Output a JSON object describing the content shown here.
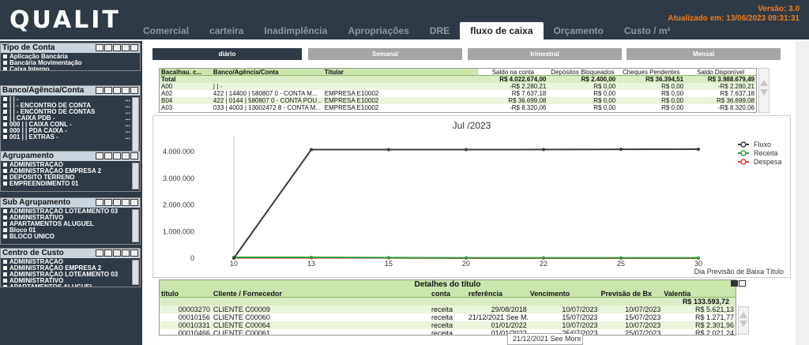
{
  "header": {
    "logo": "QUALIT",
    "version": "Versão: 3.0",
    "updated": "Atualizado em: 13/06/2023 09:31:31",
    "tabs": [
      "Comercial",
      "carteira",
      "Inadimplência",
      "Apropriações",
      "DRE",
      "fluxo de caixa",
      "Orçamento",
      "Custo / m²"
    ],
    "active_tab": "fluxo de caixa"
  },
  "sidebar": {
    "tipo_conta": {
      "title": "Tipo de Conta",
      "items": [
        "Aplicação Bancária",
        "Bancária Movimentação",
        "Caixa Interno"
      ]
    },
    "banco_conta": {
      "title": "Banco/Agência/Conta",
      "items": [
        [
          "| | -",
          "..."
        ],
        [
          "| | - ENCONTRO DE CONTA",
          "..."
        ],
        [
          "| | - ENCONTRO DE CONTAS",
          "..."
        ],
        [
          "| | CAIXA PDB -",
          "..."
        ],
        [
          "000 | | CAIXA CONL -",
          "..."
        ],
        [
          "000 | | PDA CAIXA -",
          "..."
        ],
        [
          "001 | | EXTRAS -",
          "..."
        ]
      ]
    },
    "agrupamento": {
      "title": "Agrupamento",
      "items": [
        "ADMINISTRAÇÃO",
        "ADMINISTRAÇÃO EMPRESA 2",
        "DEPÓSITO TERRENO",
        "EMPREENDIMENTO 01"
      ]
    },
    "sub_agrupamento": {
      "title": "Sub Agrupamento",
      "items": [
        "ADMINISTRAÇÃO LOTEAMENTO 03",
        "ADMINISTRATIVO",
        "APARTAMENTOS ALUGUEL",
        "Bloco 01",
        "BLOCO UNICO"
      ]
    },
    "centro_custo": {
      "title": "Centro de Custo",
      "items": [
        "ADMINISTRAÇÃO",
        "ADMINISTRAÇÃO EMPRESA 2",
        "ADMINISTRAÇÃO LOTEAMENTO 03",
        "ADMINISTRATIVO",
        "APARTAMENTOS ALUGUEL"
      ]
    },
    "icons": [
      "search-icon",
      "comment-icon",
      "print-icon",
      "export-icon",
      "clear-icon"
    ]
  },
  "period_buttons": [
    "diário",
    "Semanal",
    "trimestral",
    "Mensal"
  ],
  "active_period": "diário",
  "accounts_table": {
    "headers": [
      "Bacalhau. c...",
      "Banco/Agência/Conta",
      "Titular",
      "Saldo na conta",
      "Depósitos Bloqueados",
      "Cheques Pendentes",
      "Saldo Disponível"
    ],
    "total": [
      "Total",
      "",
      "",
      "R$ 4.022.674,00",
      "R$ 2.400,00",
      "R$ 36.394,51",
      "R$ 3.988.679,49"
    ],
    "rows": [
      [
        "A00",
        "| | -",
        "",
        "-R$ 2.280,21",
        "R$ 0,00",
        "R$ 0,00",
        "-R$ 2.280,21"
      ],
      [
        "A02",
        "422 | 14400 | 580807 0 - CONTA M...",
        "EMPRESA E10002",
        "R$ 7.637,18",
        "R$ 0,00",
        "R$ 0,00",
        "R$ 7.637,18"
      ],
      [
        "B04",
        "422 | 0144 | 580807 0 - CONTA POU...",
        "EMPRESA E10002",
        "R$ 36.699,08",
        "R$ 0,00",
        "R$ 0,00",
        "R$ 36.699,08"
      ],
      [
        "A03",
        "033 | 4003 | 13002472 8 - CONTA M...",
        "EMPRESA E10002",
        "-R$ 8.320,06",
        "R$ 0,00",
        "R$ 0,00",
        "-R$ 8.320,06"
      ]
    ]
  },
  "chart_data": {
    "type": "line",
    "title": "Jul /2023",
    "xlabel": "Dia Previsão de Baixa Título",
    "ylabel": "",
    "x": [
      10,
      13,
      15,
      20,
      22,
      25,
      30
    ],
    "yticks": [
      "0",
      "1.000.000",
      "2.000.000",
      "3.000.000",
      "4.000.000"
    ],
    "ylim": [
      0,
      4600000
    ],
    "series": [
      {
        "name": "Fluxo",
        "color": "#3b3b3b",
        "values": [
          0,
          4080000,
          4080000,
          4080000,
          4085000,
          4090000,
          4095000
        ]
      },
      {
        "name": "Receita",
        "color": "#2e9b3b",
        "values": [
          30000,
          30000,
          20000,
          10000,
          10000,
          10000,
          10000
        ]
      },
      {
        "name": "Despesa",
        "color": "#e53935",
        "values": [
          10000,
          10000,
          10000,
          0,
          0,
          0,
          0
        ]
      }
    ],
    "legend": "top-right"
  },
  "details_table": {
    "title": "Detalhes do título",
    "headers": [
      "título",
      "Cliente / Fornecedor",
      "conta",
      "referência",
      "Vencimento",
      "Previsão de Bx",
      "Valentia"
    ],
    "total": "R$ 133.593,72",
    "rows": [
      [
        "00003270",
        "CLIENTE C00009",
        "receita",
        "29/08/2018",
        "10/07/2023",
        "10/07/2023",
        "R$ 5.621,13"
      ],
      [
        "00010156",
        "CLIENTE C00060",
        "receita",
        "21/12/2021 See M...",
        "15/07/2023",
        "15/07/2023",
        "R$ 1.271,77"
      ],
      [
        "00010331",
        "CLIENTE C00064",
        "receita",
        "01/01/2022",
        "10/07/2023",
        "10/07/2023",
        "R$ 2.301,96"
      ],
      [
        "00010466",
        "CLIENTE C00061",
        "receita",
        "01/01/2022",
        "25/07/2023",
        "25/07/2023",
        "R$ 2.021,24"
      ]
    ]
  },
  "tooltip": "21/12/2021 See More"
}
